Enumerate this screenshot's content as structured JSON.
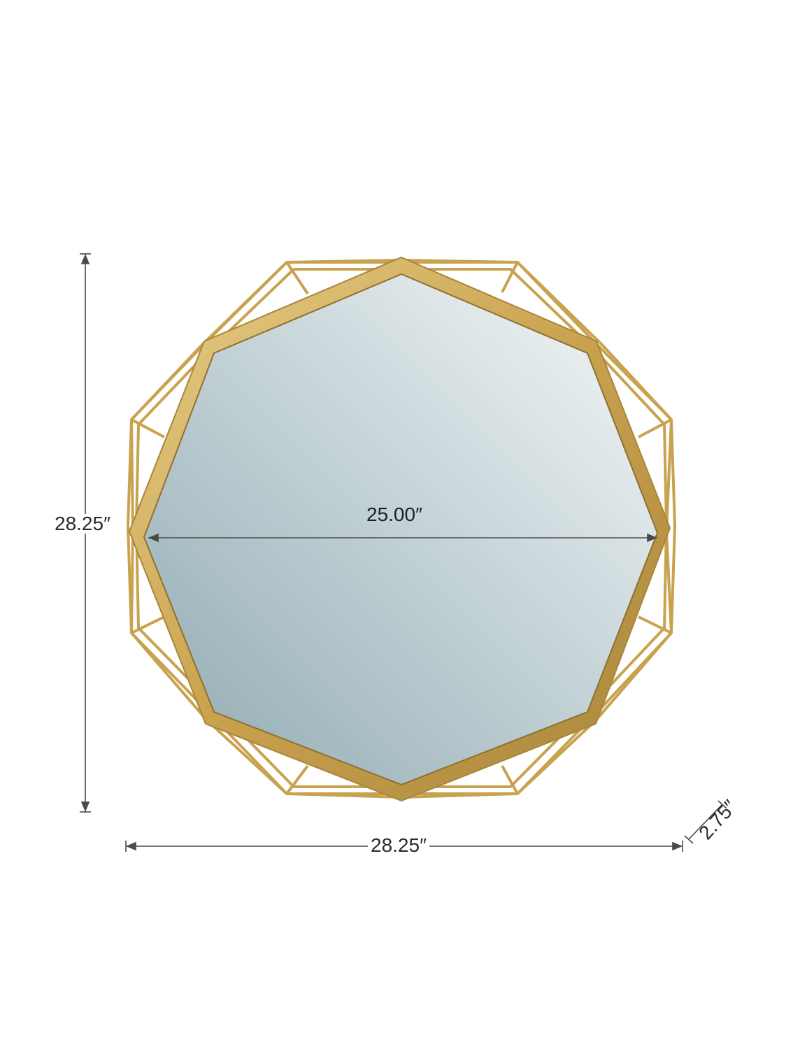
{
  "product": {
    "name": "Nonagon gold geometric wall mirror",
    "frame_color": "#c9a24e",
    "frame_highlight": "#e7cf8a",
    "frame_shadow": "#9a7732",
    "mirror_color_light": "#f7f9fa",
    "mirror_color_dark": "#8fa9b1"
  },
  "dimensions": {
    "height_label": "28.25″",
    "width_label": "28.25″",
    "inner_width_label": "25.00″",
    "depth_label": "2.75″",
    "line_color": "#4a4a4a"
  }
}
